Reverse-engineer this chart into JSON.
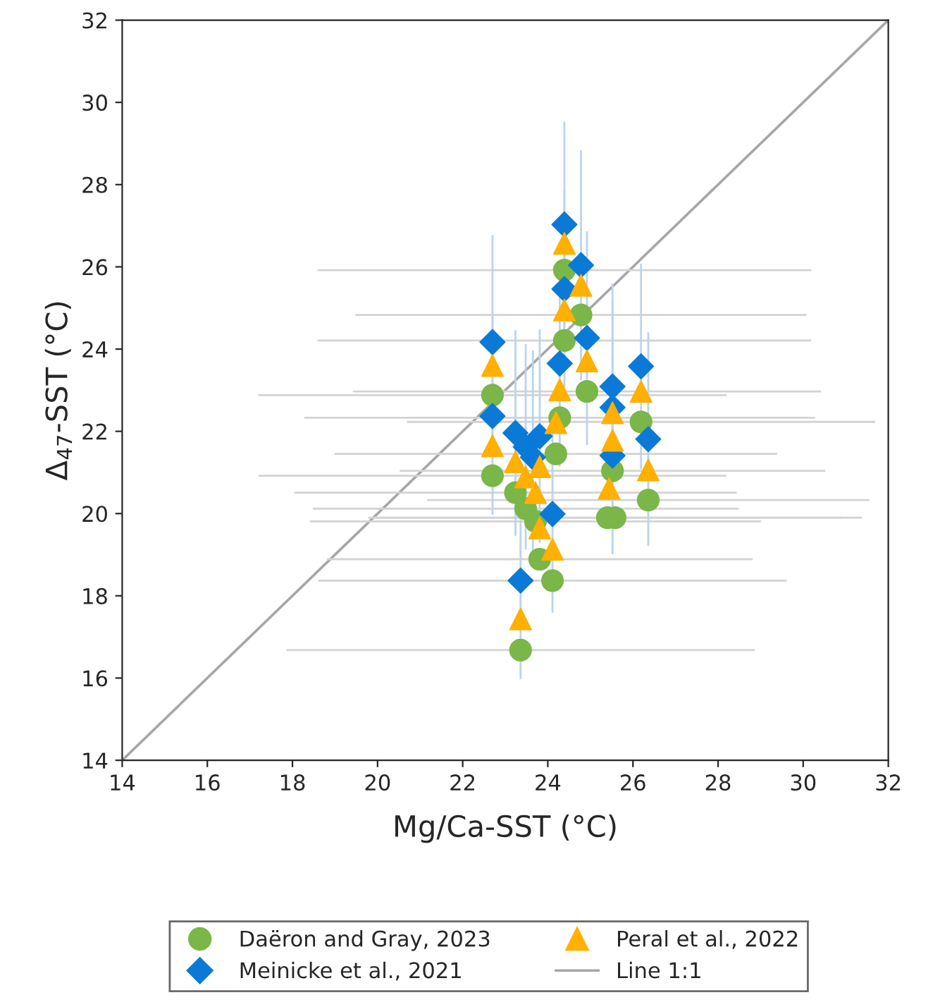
{
  "chart_data": {
    "type": "scatter",
    "xlabel": "Mg/Ca-SST (°C)",
    "ylabel": "Δ$_{47}$-SST (°C)",
    "xlim": [
      14,
      32
    ],
    "ylim": [
      14,
      32
    ],
    "xticks": [
      14,
      16,
      18,
      20,
      22,
      24,
      26,
      28,
      30,
      32
    ],
    "yticks": [
      14,
      16,
      18,
      20,
      22,
      24,
      26,
      28,
      30,
      32
    ],
    "grid": false,
    "legend": "bottom",
    "series": [
      {
        "name": "Daëron and Gray, 2023",
        "color": "#7ab648",
        "marker": "circle",
        "x": [
          22.7,
          22.7,
          23.24,
          23.36,
          23.48,
          23.71,
          23.81,
          24.11,
          24.19,
          24.28,
          24.39,
          24.39,
          24.78,
          24.92,
          25.52,
          25.58,
          25.4,
          26.19,
          26.36
        ],
        "values": [
          22.88,
          20.92,
          20.51,
          16.68,
          20.12,
          19.81,
          18.89,
          18.37,
          21.45,
          22.33,
          24.21,
          25.92,
          24.83,
          22.97,
          21.04,
          19.9,
          19.9,
          22.23,
          20.33
        ],
        "xerrors": [
          5.5,
          5.5,
          5.2,
          5.5,
          5.0,
          5.3,
          5.0,
          5.5,
          5.2,
          6.0,
          5.8,
          5.8,
          5.3,
          5.5,
          5.0,
          5.8,
          5.5,
          5.5,
          5.2
        ]
      },
      {
        "name": "Meinicke et al., 2021",
        "color": "#0a7ad6",
        "marker": "diamond",
        "x": [
          22.7,
          22.7,
          23.24,
          23.36,
          23.48,
          23.65,
          23.81,
          24.11,
          24.28,
          24.39,
          24.39,
          24.78,
          24.92,
          25.52,
          25.52,
          25.52,
          26.19,
          26.36
        ],
        "values": [
          24.17,
          22.37,
          21.96,
          18.37,
          21.62,
          21.37,
          21.88,
          19.99,
          23.65,
          25.46,
          27.03,
          26.04,
          24.27,
          23.09,
          22.58,
          21.41,
          23.58,
          21.81
        ],
        "errors": [
          2.6,
          2.4,
          2.5,
          2.4,
          2.5,
          2.6,
          2.6,
          2.4,
          2.5,
          2.4,
          2.5,
          2.8,
          2.6,
          2.5,
          2.6,
          2.4,
          2.5,
          2.6
        ]
      },
      {
        "name": "Peral et al., 2022",
        "color": "#ffb000",
        "marker": "triangle",
        "x": [
          22.7,
          22.7,
          23.24,
          23.36,
          23.48,
          23.81,
          23.71,
          23.81,
          24.11,
          24.19,
          24.28,
          24.39,
          24.39,
          24.78,
          24.92,
          25.52,
          25.52,
          25.44,
          26.19,
          26.36
        ],
        "values": [
          23.6,
          21.65,
          21.26,
          17.44,
          20.89,
          21.14,
          20.51,
          19.65,
          19.13,
          22.21,
          23.01,
          24.95,
          26.57,
          25.55,
          23.71,
          22.45,
          21.78,
          20.61,
          22.97,
          21.06
        ]
      },
      {
        "name": "Line 1:1",
        "type": "line",
        "color": "#a6a6a6",
        "x": [
          14,
          32
        ],
        "values": [
          14,
          32
        ]
      }
    ]
  }
}
